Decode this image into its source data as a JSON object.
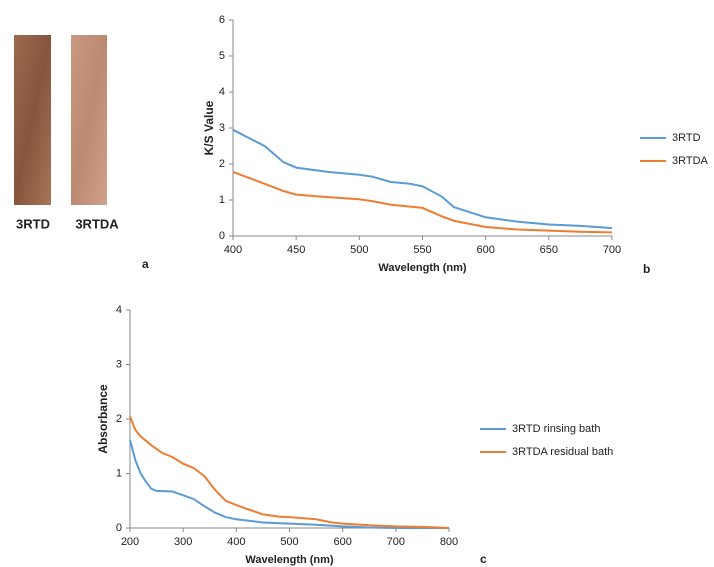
{
  "panel_a": {
    "labels": [
      "3RTD",
      "3RTDA"
    ],
    "panel_label": "a"
  },
  "chart_data": [
    {
      "type": "line",
      "panel_label": "b",
      "xlabel": "Wavelength (nm)",
      "ylabel": "K/S Value",
      "xlim": [
        400,
        700
      ],
      "xticks": [
        400,
        450,
        500,
        550,
        600,
        650,
        700
      ],
      "ylim": [
        0,
        6
      ],
      "yticks": [
        0,
        1,
        2,
        3,
        4,
        5,
        6
      ],
      "grid": false,
      "legend": "right",
      "series": [
        {
          "name": "3RTD",
          "color": "#5b9bd5",
          "x": [
            400,
            425,
            440,
            450,
            475,
            500,
            510,
            525,
            540,
            550,
            565,
            575,
            600,
            625,
            650,
            675,
            700
          ],
          "values": [
            2.95,
            2.5,
            2.05,
            1.9,
            1.78,
            1.7,
            1.65,
            1.5,
            1.45,
            1.38,
            1.1,
            0.8,
            0.52,
            0.4,
            0.32,
            0.28,
            0.22
          ]
        },
        {
          "name": "3RTDA",
          "color": "#ed7d31",
          "x": [
            400,
            425,
            440,
            450,
            475,
            500,
            510,
            525,
            550,
            565,
            575,
            600,
            625,
            650,
            675,
            700
          ],
          "values": [
            1.78,
            1.45,
            1.25,
            1.15,
            1.08,
            1.02,
            0.97,
            0.87,
            0.78,
            0.55,
            0.42,
            0.25,
            0.18,
            0.15,
            0.12,
            0.1
          ]
        }
      ]
    },
    {
      "type": "line",
      "panel_label": "c",
      "xlabel": "Wavelength (nm)",
      "ylabel": "Absorbance",
      "xlim": [
        200,
        800
      ],
      "xticks": [
        200,
        300,
        400,
        500,
        600,
        700,
        800
      ],
      "ylim": [
        0,
        4
      ],
      "yticks": [
        0,
        1,
        2,
        3,
        4
      ],
      "grid": false,
      "legend": "right",
      "series": [
        {
          "name": "3RTD rinsing bath",
          "color": "#5b9bd5",
          "x": [
            200,
            210,
            220,
            230,
            240,
            250,
            280,
            300,
            320,
            340,
            360,
            380,
            400,
            450,
            500,
            550,
            600,
            650,
            700,
            800
          ],
          "values": [
            1.62,
            1.25,
            1.0,
            0.85,
            0.72,
            0.68,
            0.67,
            0.6,
            0.53,
            0.4,
            0.28,
            0.2,
            0.16,
            0.1,
            0.08,
            0.06,
            0.03,
            0.01,
            0.0,
            0.0
          ]
        },
        {
          "name": "3RTDA residual bath",
          "color": "#ed7d31",
          "x": [
            200,
            210,
            220,
            240,
            260,
            280,
            300,
            320,
            340,
            360,
            380,
            400,
            420,
            450,
            480,
            500,
            550,
            580,
            600,
            650,
            700,
            750,
            800
          ],
          "values": [
            2.05,
            1.8,
            1.68,
            1.52,
            1.38,
            1.3,
            1.18,
            1.1,
            0.95,
            0.7,
            0.5,
            0.42,
            0.35,
            0.25,
            0.21,
            0.2,
            0.16,
            0.1,
            0.08,
            0.05,
            0.03,
            0.02,
            0.0
          ]
        }
      ]
    }
  ]
}
